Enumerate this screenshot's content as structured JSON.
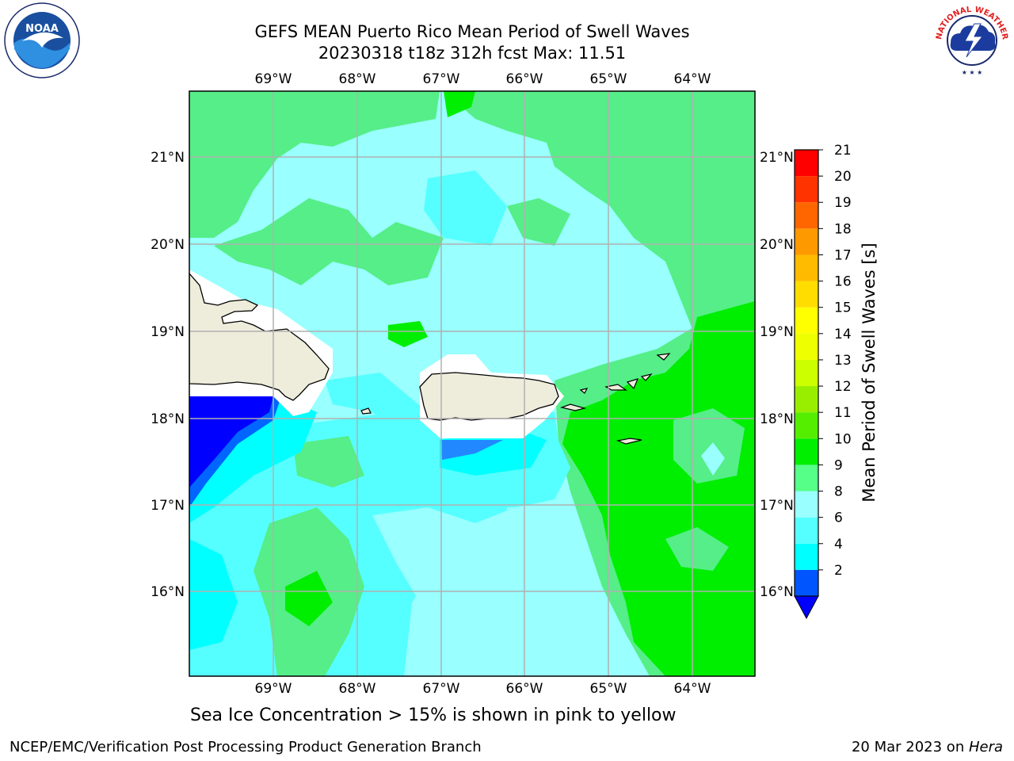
{
  "title": {
    "line1": "GEFS MEAN Puerto Rico Mean Period of Swell Waves",
    "line2": "20230318 t18z 312h fcst   Max: 11.51"
  },
  "logos": {
    "left": {
      "icon": "noaa-logo",
      "text": "NOAA"
    },
    "right": {
      "icon": "nws-logo",
      "ring_text": "NATIONAL WEATHER SERVICE"
    }
  },
  "map": {
    "lon_ticks": [
      "69°W",
      "68°W",
      "67°W",
      "66°W",
      "65°W",
      "64°W"
    ],
    "lat_ticks": [
      "21°N",
      "20°N",
      "19°N",
      "18°N",
      "17°N",
      "16°N"
    ],
    "extent": {
      "lon": [
        -70.0,
        -63.25
      ],
      "lat": [
        15.0,
        21.75
      ]
    },
    "land_color": "#eeeddc",
    "grid": true
  },
  "colorbar": {
    "label": "Mean Period of Swell Waves [s]",
    "ticks": [
      "21",
      "20",
      "19",
      "18",
      "17",
      "16",
      "15",
      "14",
      "13",
      "12",
      "11",
      "10",
      "9",
      "8",
      "6",
      "4",
      "2"
    ],
    "levels": [
      2,
      4,
      6,
      8,
      9,
      10,
      11,
      12,
      13,
      14,
      15,
      16,
      17,
      18,
      19,
      20,
      21
    ],
    "colors": [
      "#0055ff",
      "#00ffff",
      "#55ffff",
      "#99ffff",
      "#55ff88",
      "#00ee00",
      "#55ee00",
      "#99ee00",
      "#ccff00",
      "#eeff00",
      "#ffff00",
      "#ffdd00",
      "#ffbb00",
      "#ff9900",
      "#ff6600",
      "#ff3300",
      "#ff0000"
    ],
    "under_color": "#0000ff"
  },
  "footnote": "Sea Ice Concentration > 15% is shown in pink to yellow",
  "footer": {
    "left": "NCEP/EMC/Verification Post Processing Product Generation Branch",
    "right_prefix": "20 Mar 2023 on ",
    "right_host": "Hera"
  }
}
